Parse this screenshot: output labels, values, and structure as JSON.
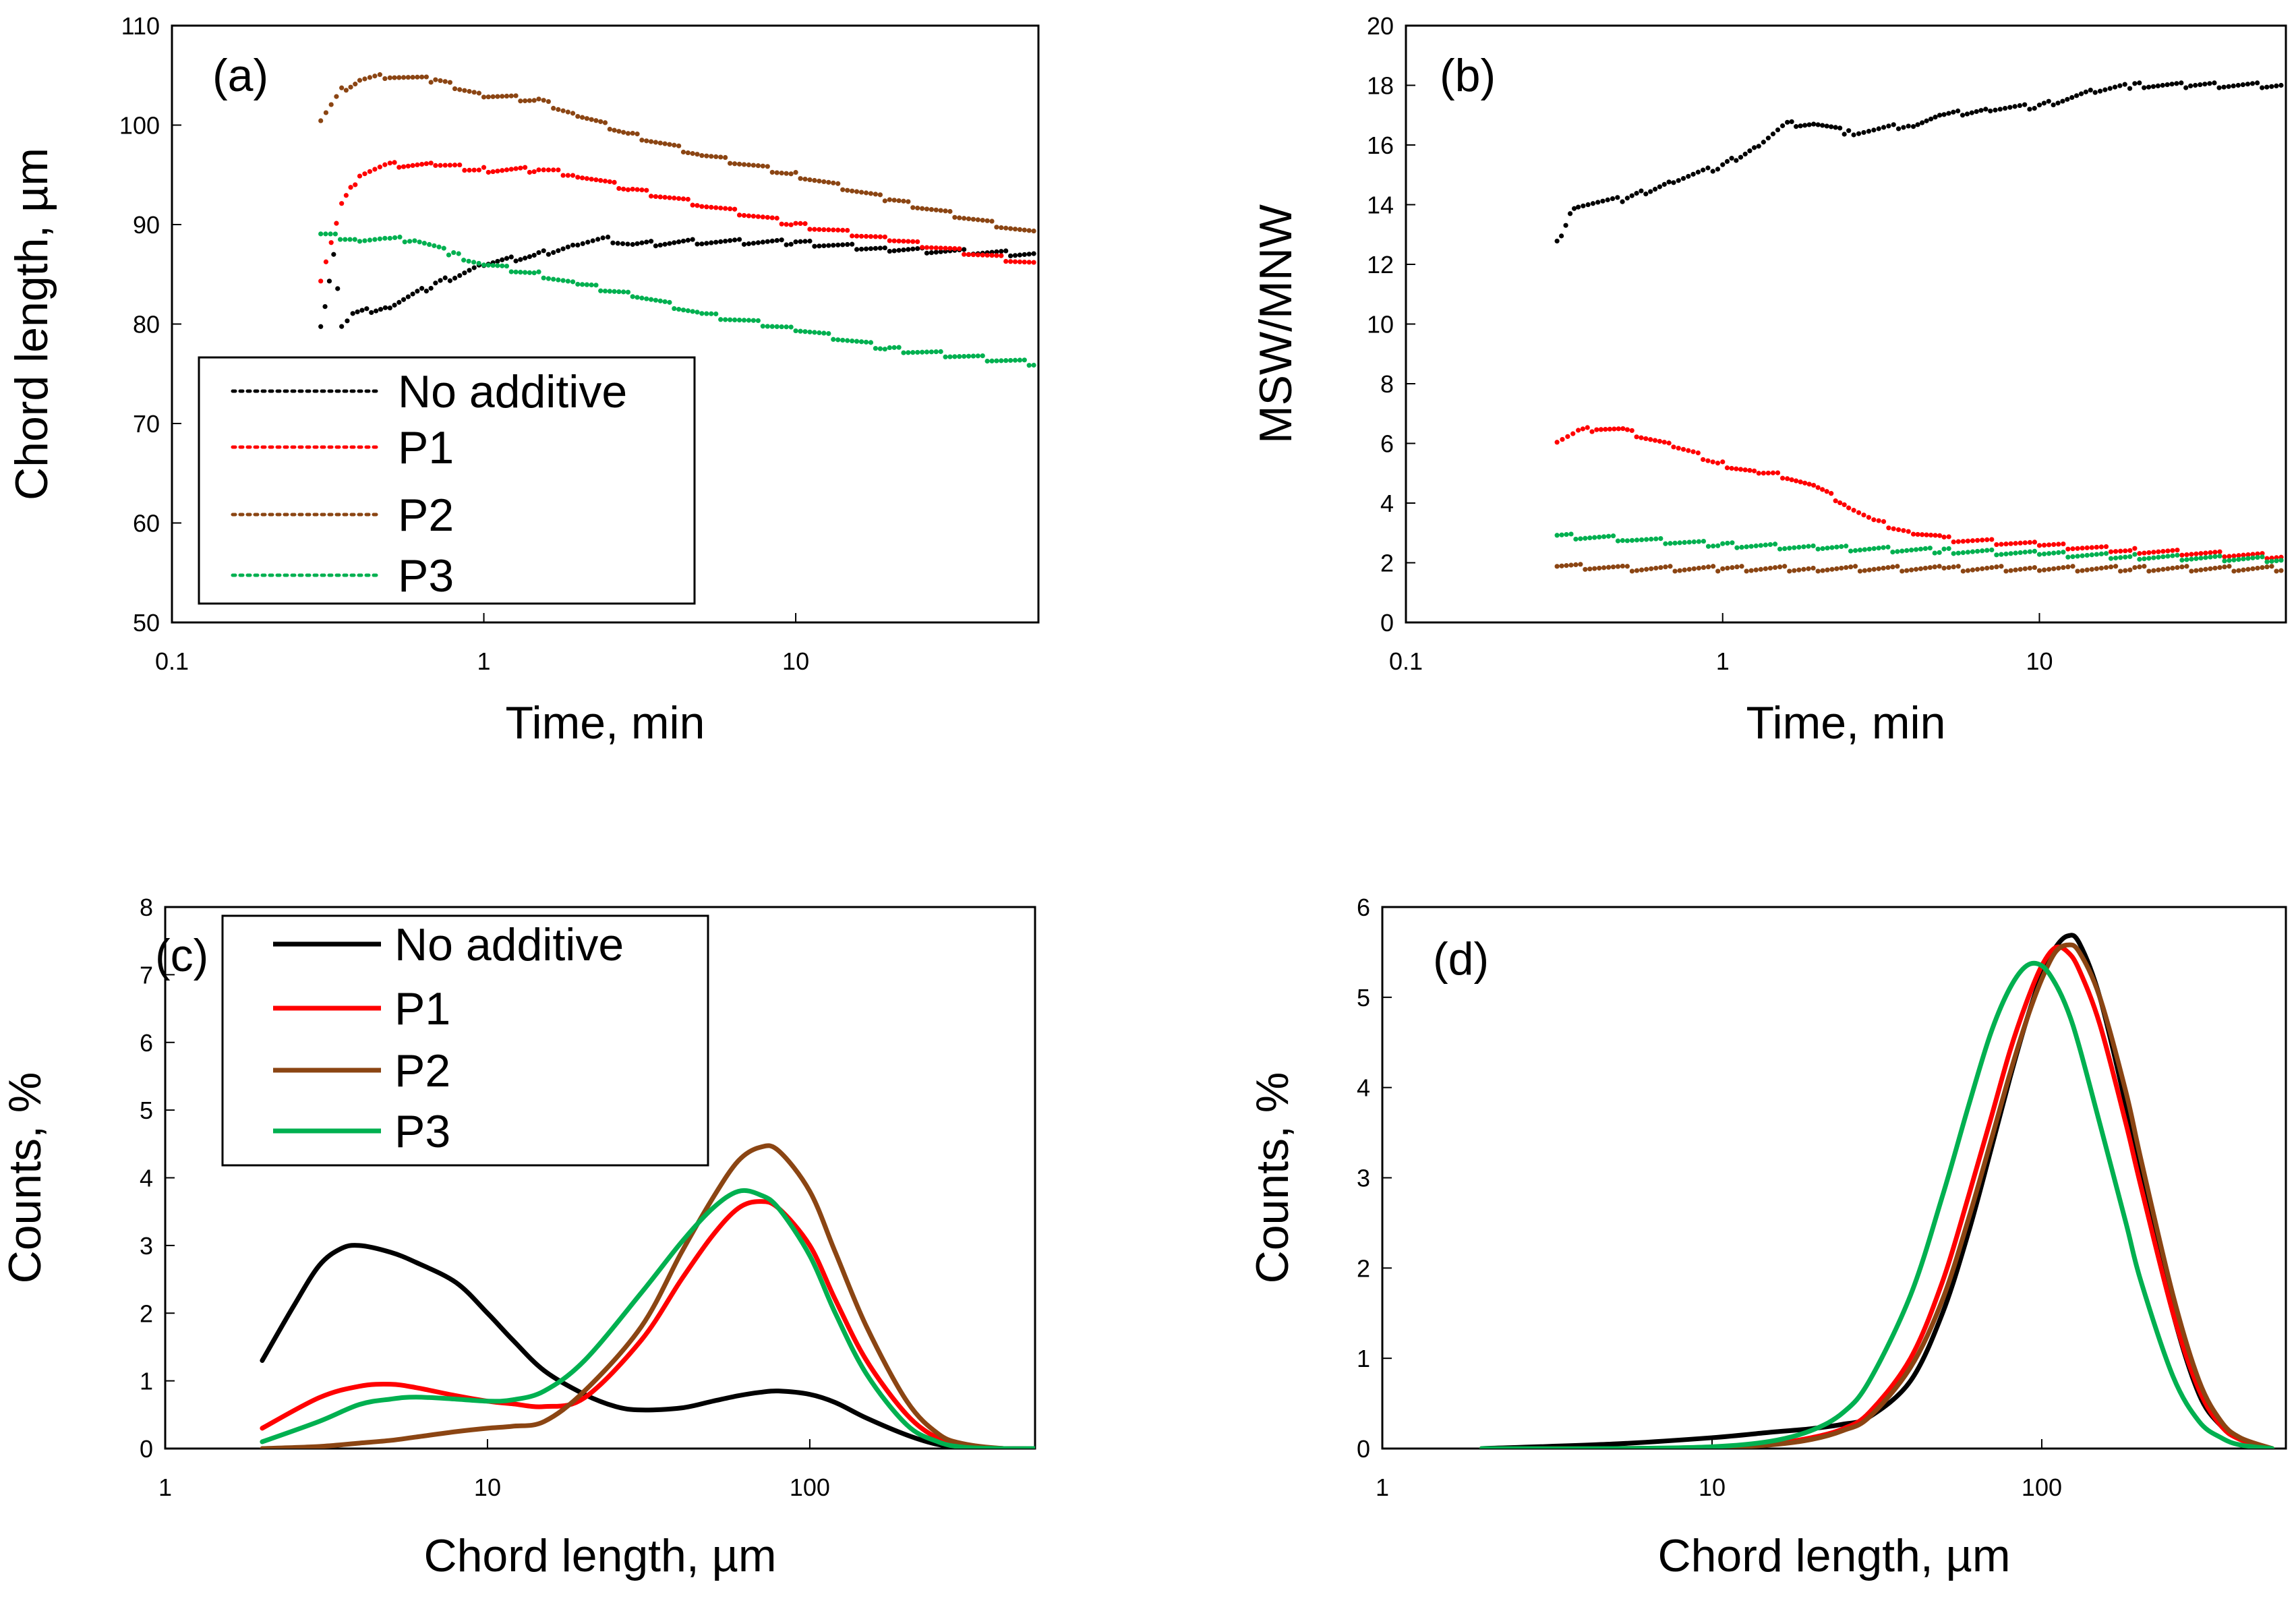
{
  "chart_data": [
    {
      "panel": "(a)",
      "type": "scatter",
      "xscale": "log",
      "xlim": [
        0.1,
        60
      ],
      "ylim": [
        50,
        110
      ],
      "xticks": [
        0.1,
        1,
        10
      ],
      "xtick_labels": [
        "0.1",
        "1",
        "10"
      ],
      "yticks": [
        50,
        60,
        70,
        80,
        90,
        100,
        110
      ],
      "ytick_labels": [
        "50",
        "60",
        "70",
        "80",
        "90",
        "100",
        "110"
      ],
      "xlabel": "Time, min",
      "ylabel": "Chord length, µm",
      "legend": "bottom-left",
      "series": [
        {
          "name": "No additive",
          "color": "#000000",
          "x": [
            0.3,
            0.33,
            0.35,
            0.38,
            0.5,
            0.7,
            1,
            1.5,
            2,
            2.5,
            3,
            5,
            10,
            20,
            60
          ],
          "y": [
            79.5,
            87,
            80,
            81,
            81.8,
            84,
            86,
            87,
            88,
            88.5,
            88,
            88.3,
            88.2,
            87.5,
            87
          ]
        },
        {
          "name": "P1",
          "color": "#ff0000",
          "x": [
            0.3,
            0.35,
            0.4,
            0.5,
            0.7,
            1,
            1.5,
            2,
            3,
            5,
            10,
            20,
            60
          ],
          "y": [
            84.5,
            92,
            95,
            96,
            96,
            95.5,
            95.5,
            95,
            93.5,
            92,
            90,
            88.5,
            86
          ]
        },
        {
          "name": "P2",
          "color": "#8b4513",
          "x": [
            0.3,
            0.35,
            0.4,
            0.5,
            0.7,
            1,
            1.5,
            2,
            3,
            5,
            10,
            20,
            60
          ],
          "y": [
            100.5,
            103.5,
            104.5,
            105,
            104.5,
            103,
            102.5,
            101,
            99,
            97,
            95,
            92.5,
            89
          ]
        },
        {
          "name": "P3",
          "color": "#00b050",
          "x": [
            0.3,
            0.4,
            0.5,
            0.6,
            0.8,
            1,
            1.5,
            2,
            3,
            5,
            10,
            20,
            60
          ],
          "y": [
            89,
            88.5,
            88.5,
            88.5,
            87,
            86,
            85,
            84,
            83,
            81,
            79.5,
            77.5,
            76
          ]
        }
      ]
    },
    {
      "panel": "(b)",
      "type": "scatter",
      "xscale": "log",
      "xlim": [
        0.1,
        60
      ],
      "ylim": [
        0,
        20
      ],
      "xticks": [
        0.1,
        1,
        10
      ],
      "xtick_labels": [
        "0.1",
        "1",
        "10"
      ],
      "yticks": [
        0,
        2,
        4,
        6,
        8,
        10,
        12,
        14,
        16,
        18,
        20
      ],
      "ytick_labels": [
        "0",
        "2",
        "4",
        "6",
        "8",
        "10",
        "12",
        "14",
        "16",
        "18",
        "20"
      ],
      "xlabel": "Time, min",
      "ylabel": "MSW/MNW",
      "series": [
        {
          "name": "No additive",
          "color": "#000000",
          "x": [
            0.3,
            0.33,
            0.35,
            0.5,
            0.7,
            1,
            1.3,
            1.6,
            2,
            2.5,
            3,
            4,
            5,
            7,
            10,
            15,
            20,
            30,
            60
          ],
          "y": [
            12.7,
            13.7,
            14,
            14.2,
            14.8,
            15.3,
            16,
            16.7,
            16.7,
            16.4,
            16.5,
            16.7,
            17,
            17.2,
            17.3,
            17.8,
            18,
            18,
            18
          ]
        },
        {
          "name": "P1",
          "color": "#ff0000",
          "x": [
            0.3,
            0.35,
            0.4,
            0.5,
            0.7,
            1,
            1.3,
            1.6,
            2,
            2.5,
            3,
            4,
            5,
            10,
            20,
            60
          ],
          "y": [
            6.1,
            6.4,
            6.5,
            6.4,
            5.9,
            5.3,
            5.0,
            4.9,
            4.5,
            3.9,
            3.4,
            3.0,
            2.8,
            2.6,
            2.4,
            2.2
          ]
        },
        {
          "name": "P2",
          "color": "#8b4513",
          "x": [
            0.3,
            0.5,
            1,
            2,
            5,
            10,
            20,
            60
          ],
          "y": [
            1.9,
            1.8,
            1.8,
            1.8,
            1.8,
            1.8,
            1.8,
            1.8
          ]
        },
        {
          "name": "P3",
          "color": "#00b050",
          "x": [
            0.3,
            0.5,
            1,
            2,
            5,
            10,
            20,
            60
          ],
          "y": [
            2.9,
            2.8,
            2.6,
            2.5,
            2.4,
            2.3,
            2.2,
            2.1
          ]
        }
      ]
    },
    {
      "panel": "(c)",
      "type": "line",
      "xscale": "log",
      "xlim": [
        1,
        500
      ],
      "ylim": [
        0,
        8
      ],
      "xticks": [
        1,
        10,
        100
      ],
      "xtick_labels": [
        "1",
        "10",
        "100"
      ],
      "yticks": [
        0,
        1,
        2,
        3,
        4,
        5,
        6,
        7,
        8
      ],
      "ytick_labels": [
        "0",
        "1",
        "2",
        "3",
        "4",
        "5",
        "6",
        "7",
        "8"
      ],
      "xlabel": "Chord length, µm",
      "ylabel": "Counts, %",
      "legend": "top-left",
      "series": [
        {
          "name": "No additive",
          "color": "#000000",
          "x": [
            2,
            2.5,
            3,
            3.5,
            4,
            5,
            6,
            8,
            10,
            12,
            15,
            20,
            25,
            30,
            40,
            50,
            60,
            70,
            80,
            100,
            120,
            150,
            200,
            250,
            300,
            400,
            500
          ],
          "y": [
            1.3,
            2.1,
            2.7,
            2.95,
            3.0,
            2.9,
            2.75,
            2.45,
            2.0,
            1.6,
            1.15,
            0.8,
            0.62,
            0.57,
            0.6,
            0.7,
            0.78,
            0.83,
            0.85,
            0.8,
            0.68,
            0.45,
            0.2,
            0.06,
            0.02,
            0,
            0
          ]
        },
        {
          "name": "P1",
          "color": "#ff0000",
          "x": [
            2,
            3,
            4,
            5,
            6,
            8,
            10,
            12,
            15,
            20,
            30,
            40,
            50,
            60,
            70,
            80,
            100,
            120,
            150,
            200,
            250,
            300,
            400,
            500
          ],
          "y": [
            0.3,
            0.75,
            0.92,
            0.95,
            0.9,
            0.78,
            0.7,
            0.66,
            0.62,
            0.75,
            1.6,
            2.5,
            3.15,
            3.55,
            3.65,
            3.55,
            3.0,
            2.2,
            1.3,
            0.5,
            0.15,
            0.05,
            0,
            0
          ]
        },
        {
          "name": "P2",
          "color": "#8b4513",
          "x": [
            2,
            3,
            4,
            5,
            6,
            8,
            10,
            12,
            15,
            20,
            30,
            40,
            50,
            60,
            70,
            80,
            100,
            120,
            150,
            200,
            250,
            300,
            400,
            500
          ],
          "y": [
            0,
            0.03,
            0.08,
            0.12,
            0.17,
            0.25,
            0.3,
            0.33,
            0.4,
            0.85,
            1.8,
            2.9,
            3.7,
            4.25,
            4.45,
            4.4,
            3.8,
            2.9,
            1.8,
            0.7,
            0.22,
            0.07,
            0,
            0
          ]
        },
        {
          "name": "P3",
          "color": "#00b050",
          "x": [
            2,
            3,
            4,
            5,
            6,
            8,
            10,
            12,
            15,
            20,
            30,
            40,
            50,
            60,
            70,
            80,
            100,
            120,
            150,
            200,
            250,
            300,
            400,
            500
          ],
          "y": [
            0.1,
            0.4,
            0.65,
            0.73,
            0.76,
            0.73,
            0.7,
            0.72,
            0.85,
            1.3,
            2.3,
            3.05,
            3.55,
            3.8,
            3.75,
            3.55,
            2.85,
            2.0,
            1.1,
            0.35,
            0.1,
            0.02,
            0,
            0
          ]
        }
      ]
    },
    {
      "panel": "(d)",
      "type": "line",
      "xscale": "log",
      "xlim": [
        1,
        550
      ],
      "ylim": [
        0,
        6
      ],
      "xticks": [
        1,
        10,
        100
      ],
      "xtick_labels": [
        "1",
        "10",
        "100"
      ],
      "yticks": [
        0,
        1,
        2,
        3,
        4,
        5,
        6
      ],
      "ytick_labels": [
        "0",
        "1",
        "2",
        "3",
        "4",
        "5",
        "6"
      ],
      "xlabel": "Chord length, µm",
      "ylabel": "Counts, %",
      "series": [
        {
          "name": "No additive",
          "color": "#000000",
          "x": [
            2,
            5,
            10,
            15,
            20,
            25,
            30,
            40,
            50,
            60,
            70,
            80,
            90,
            100,
            110,
            120,
            130,
            150,
            180,
            200,
            250,
            300,
            350,
            400,
            500
          ],
          "y": [
            0,
            0.05,
            0.12,
            0.18,
            0.22,
            0.27,
            0.35,
            0.75,
            1.5,
            2.4,
            3.3,
            4.1,
            4.75,
            5.25,
            5.55,
            5.68,
            5.6,
            5.0,
            3.8,
            3.0,
            1.5,
            0.6,
            0.25,
            0.1,
            0
          ]
        },
        {
          "name": "P1",
          "color": "#ff0000",
          "x": [
            2,
            5,
            10,
            15,
            20,
            25,
            30,
            40,
            50,
            60,
            70,
            80,
            90,
            100,
            110,
            120,
            130,
            150,
            180,
            200,
            250,
            300,
            350,
            400,
            500
          ],
          "y": [
            0,
            0,
            0.01,
            0.05,
            0.12,
            0.22,
            0.4,
            1.0,
            1.85,
            2.8,
            3.65,
            4.4,
            4.95,
            5.35,
            5.55,
            5.5,
            5.3,
            4.7,
            3.6,
            2.9,
            1.5,
            0.65,
            0.25,
            0.1,
            0
          ]
        },
        {
          "name": "P2",
          "color": "#8b4513",
          "x": [
            2,
            5,
            10,
            15,
            20,
            25,
            30,
            40,
            50,
            60,
            70,
            80,
            90,
            100,
            110,
            120,
            130,
            150,
            180,
            200,
            250,
            300,
            350,
            400,
            500
          ],
          "y": [
            0,
            0,
            0.01,
            0.04,
            0.1,
            0.2,
            0.35,
            0.9,
            1.65,
            2.55,
            3.4,
            4.15,
            4.75,
            5.2,
            5.5,
            5.58,
            5.5,
            5.0,
            3.95,
            3.2,
            1.7,
            0.75,
            0.3,
            0.12,
            0
          ]
        },
        {
          "name": "P3",
          "color": "#00b050",
          "x": [
            2,
            5,
            10,
            15,
            20,
            25,
            30,
            40,
            50,
            60,
            70,
            80,
            90,
            100,
            110,
            120,
            130,
            150,
            180,
            200,
            250,
            300,
            350,
            400,
            500
          ],
          "y": [
            0,
            0,
            0.02,
            0.08,
            0.2,
            0.4,
            0.75,
            1.7,
            2.8,
            3.8,
            4.6,
            5.1,
            5.35,
            5.35,
            5.15,
            4.85,
            4.45,
            3.6,
            2.5,
            1.85,
            0.8,
            0.3,
            0.12,
            0.04,
            0
          ]
        }
      ]
    }
  ]
}
